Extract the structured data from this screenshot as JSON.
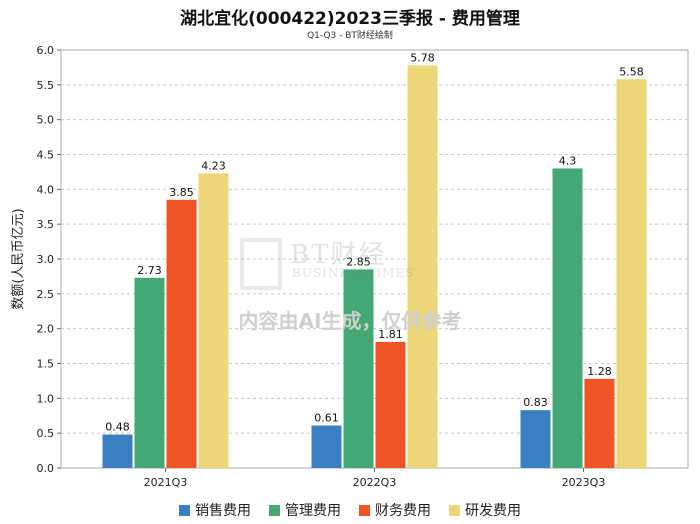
{
  "chart_data": {
    "type": "bar",
    "title": "湖北宜化(000422)2023三季报 - 费用管理",
    "subtitle": "Q1-Q3 - BT财经绘制",
    "ylabel": "数额(人民币亿元)",
    "xlabel": "",
    "ylim": [
      0,
      6.0
    ],
    "yticks": [
      "0.0",
      "0.5",
      "1.0",
      "1.5",
      "2.0",
      "2.5",
      "3.0",
      "3.5",
      "4.0",
      "4.5",
      "5.0",
      "5.5",
      "6.0"
    ],
    "categories": [
      "2021Q3",
      "2022Q3",
      "2023Q3"
    ],
    "series": [
      {
        "name": "销售费用",
        "color": "#3a7fc1",
        "values": [
          0.48,
          0.61,
          0.83
        ],
        "labels": [
          "0.48",
          "0.61",
          "0.83"
        ]
      },
      {
        "name": "管理费用",
        "color": "#44a874",
        "values": [
          2.73,
          2.85,
          4.3
        ],
        "labels": [
          "2.73",
          "2.85",
          "4.3"
        ]
      },
      {
        "name": "财务费用",
        "color": "#ef5526",
        "values": [
          3.85,
          1.81,
          1.28
        ],
        "labels": [
          "3.85",
          "1.81",
          "1.28"
        ]
      },
      {
        "name": "研发费用",
        "color": "#ecd678",
        "values": [
          4.23,
          5.78,
          5.58
        ],
        "labels": [
          "4.23",
          "5.78",
          "5.58"
        ]
      }
    ],
    "grid": true,
    "legend": "bottom"
  },
  "watermark": {
    "brand": "BT财经",
    "sub": "BUSINESSTIMES",
    "disclaimer": "内容由AI生成，仅供参考"
  }
}
